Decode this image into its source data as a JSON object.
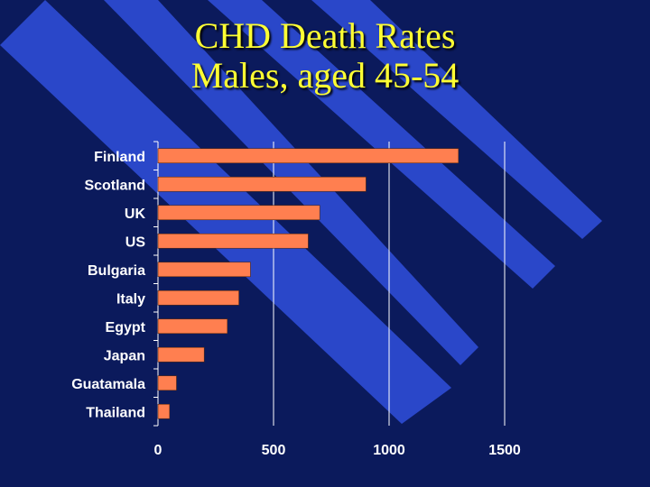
{
  "slide": {
    "background_color": "#0b1a5c",
    "stripe_color": "#2a47c9",
    "title_color": "#ffff33",
    "title_line1": "CHD Death Rates",
    "title_line2": "Males, aged 45-54"
  },
  "chart_data": {
    "type": "bar",
    "orientation": "horizontal",
    "title": "CHD Death Rates Males, aged 45-54",
    "categories": [
      "Finland",
      "Scotland",
      "UK",
      "US",
      "Bulgaria",
      "Italy",
      "Egypt",
      "Japan",
      "Guatamala",
      "Thailand"
    ],
    "values": [
      1300,
      900,
      700,
      650,
      400,
      350,
      300,
      200,
      80,
      50
    ],
    "xlim": [
      0,
      1500
    ],
    "xticks": [
      0,
      500,
      1000,
      1500
    ],
    "xtick_labels": [
      "0",
      "500",
      "1000",
      "1500"
    ],
    "grid": "vertical",
    "bar_color": "#ff7f50",
    "xlabel": "",
    "ylabel": ""
  }
}
